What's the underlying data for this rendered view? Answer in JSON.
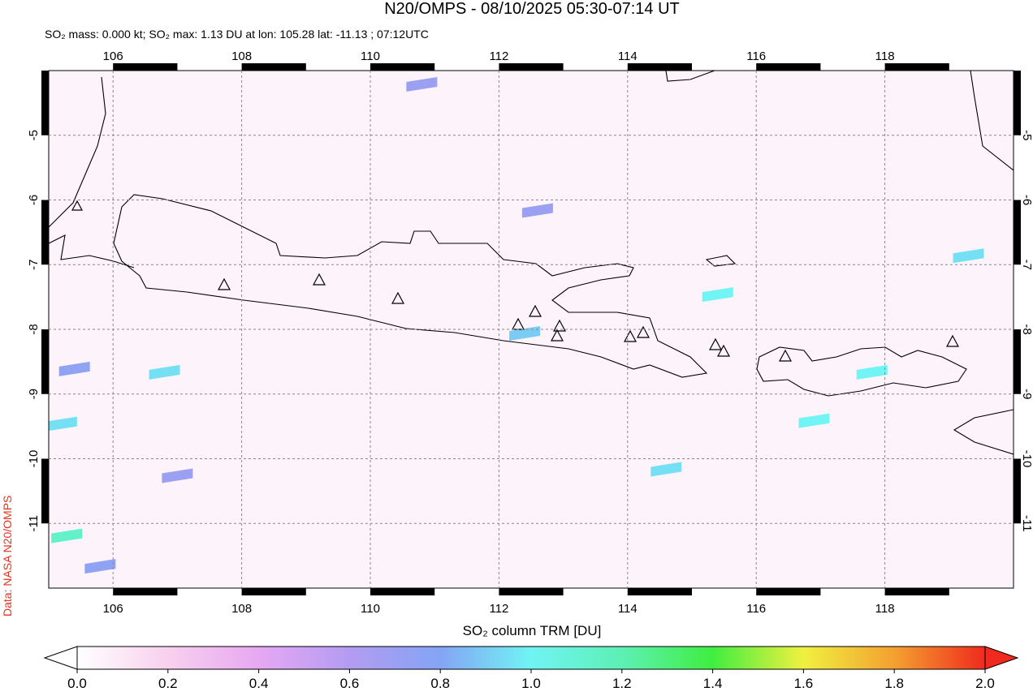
{
  "title": "N20/OMPS - 08/10/2025 05:30-07:14 UT",
  "subtitle": "SO₂ mass: 0.000 kt; SO₂ max: 1.13 DU at lon: 105.28 lat: -11.13 ; 07:12UTC",
  "credit": "Data: NASA N20/OMPS",
  "map": {
    "xlim": [
      105,
      120
    ],
    "ylim": [
      -12,
      -4
    ],
    "xticks": [
      106,
      108,
      110,
      112,
      114,
      116,
      118
    ],
    "yticks": [
      -5,
      -6,
      -7,
      -8,
      -9,
      -10,
      -11
    ],
    "grid": true,
    "retrievals": [
      {
        "lon": 105.28,
        "lat": -11.13,
        "value": 1.13
      },
      {
        "lon": 106.8,
        "lat": -8.6,
        "value": 0.95
      },
      {
        "lon": 105.4,
        "lat": -8.55,
        "value": 0.75
      },
      {
        "lon": 105.2,
        "lat": -9.4,
        "value": 0.95
      },
      {
        "lon": 114.6,
        "lat": -10.1,
        "value": 0.95
      },
      {
        "lon": 115.4,
        "lat": -7.4,
        "value": 1.0
      },
      {
        "lon": 116.9,
        "lat": -9.35,
        "value": 1.0
      },
      {
        "lon": 119.3,
        "lat": -6.8,
        "value": 0.95
      },
      {
        "lon": 110.8,
        "lat": -4.15,
        "value": 0.7
      },
      {
        "lon": 107.0,
        "lat": -10.2,
        "value": 0.7
      },
      {
        "lon": 105.8,
        "lat": -11.6,
        "value": 0.75
      },
      {
        "lon": 117.8,
        "lat": -8.6,
        "value": 1.0
      },
      {
        "lon": 112.6,
        "lat": -6.1,
        "value": 0.7
      },
      {
        "lon": 112.4,
        "lat": -8.0,
        "value": 0.9
      }
    ]
  },
  "colorbar": {
    "label": "SO₂ column TRM [DU]",
    "lim": [
      0,
      2
    ],
    "ticks": [
      {
        "value": 0,
        "label": "0.0"
      },
      {
        "value": 0.2,
        "label": "0.2"
      },
      {
        "value": 0.4,
        "label": "0.4"
      },
      {
        "value": 0.6,
        "label": "0.6"
      },
      {
        "value": 0.8,
        "label": "0.8"
      },
      {
        "value": 1,
        "label": "1.0"
      },
      {
        "value": 1.2,
        "label": "1.2"
      },
      {
        "value": 1.4,
        "label": "1.4"
      },
      {
        "value": 1.6,
        "label": "1.6"
      },
      {
        "value": 1.8,
        "label": "1.8"
      },
      {
        "value": 2,
        "label": "2.0"
      }
    ],
    "colorscale": [
      {
        "value": 0,
        "color": "#ffffff"
      },
      {
        "value": 0.2,
        "color": "#f8d0ee"
      },
      {
        "value": 0.4,
        "color": "#e6a8f2"
      },
      {
        "value": 0.6,
        "color": "#b39cf2"
      },
      {
        "value": 0.8,
        "color": "#84a4f4"
      },
      {
        "value": 1,
        "color": "#70f4f4"
      },
      {
        "value": 1.2,
        "color": "#5cf0b4"
      },
      {
        "value": 1.4,
        "color": "#40ee40"
      },
      {
        "value": 1.6,
        "color": "#f0f040"
      },
      {
        "value": 1.8,
        "color": "#f4a030"
      },
      {
        "value": 2,
        "color": "#f02a1e"
      }
    ]
  }
}
